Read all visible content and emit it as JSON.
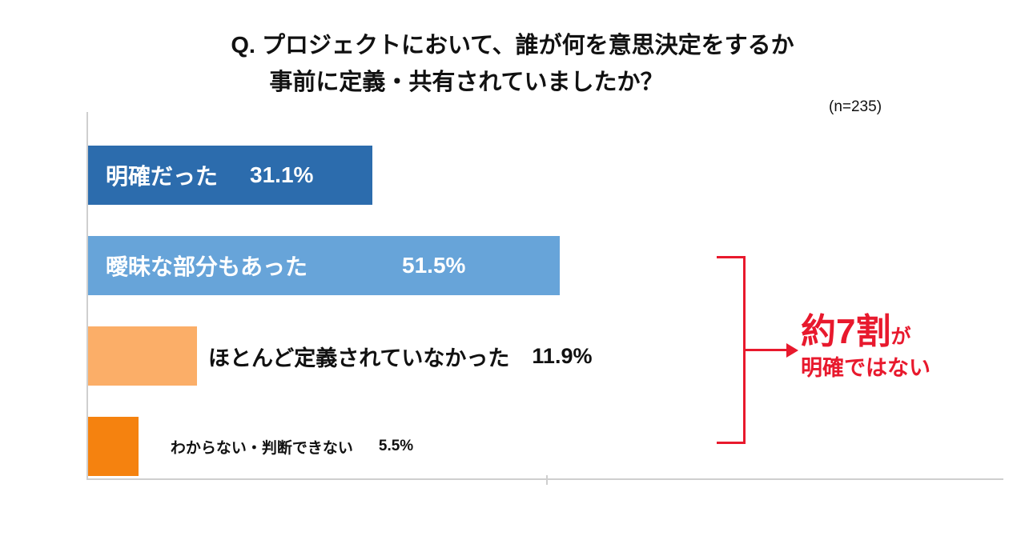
{
  "title": {
    "line1": "Q. プロジェクトにおいて、誰が何を意思決定をするか",
    "line2": "事前に定義・共有されていましたか？"
  },
  "sample_size": "(n=235)",
  "chart_data": {
    "type": "bar",
    "orientation": "horizontal",
    "title": "Q. プロジェクトにおいて、誰が何を意思決定をするか 事前に定義・共有されていましたか？",
    "sample_size_text": "(n=235)",
    "xlim": [
      0,
      100
    ],
    "x_tick": 50,
    "grid": false,
    "categories": [
      "明確だった",
      "曖昧な部分もあった",
      "ほとんど定義されていなかった",
      "わからない・判断できない"
    ],
    "values": [
      31.1,
      51.5,
      11.9,
      5.5
    ],
    "bars": [
      {
        "label": "明確だった",
        "value": 31.1,
        "value_text": "31.1%",
        "color": "#2c6cad",
        "label_placement": "inside"
      },
      {
        "label": "曖昧な部分もあった",
        "value": 51.5,
        "value_text": "51.5%",
        "color": "#67a4d9",
        "label_placement": "inside"
      },
      {
        "label": "ほとんど定義されていなかった",
        "value": 11.9,
        "value_text": "11.9%",
        "color": "#fbae68",
        "label_placement": "outside"
      },
      {
        "label": "わからない・判断できない",
        "value": 5.5,
        "value_text": "5.5%",
        "color": "#f5820f",
        "label_placement": "outside"
      }
    ]
  },
  "annotation": {
    "highlight": "約7割",
    "suffix": "が",
    "line2": "明確ではない",
    "color": "#e8192d"
  }
}
